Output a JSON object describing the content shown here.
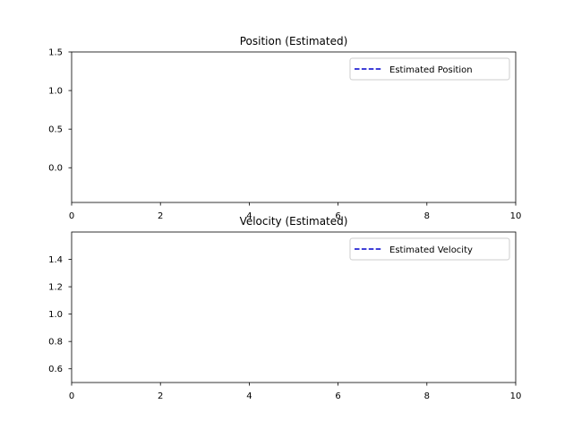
{
  "chart_data": [
    {
      "type": "line",
      "title": "Position (Estimated)",
      "xlabel": "",
      "ylabel": "",
      "xlim": [
        0,
        10
      ],
      "ylim": [
        -0.45,
        1.5
      ],
      "xticks": [
        0,
        2,
        4,
        6,
        8,
        10
      ],
      "xtick_labels": [
        "0",
        "2",
        "4",
        "6",
        "8",
        "10"
      ],
      "yticks": [
        0.0,
        0.5,
        1.0,
        1.5
      ],
      "ytick_labels": [
        "0.0",
        "0.5",
        "1.0",
        "1.5"
      ],
      "grid": false,
      "legend_position": "top-right",
      "series": [
        {
          "name": "Estimated Position",
          "color": "#0000cc",
          "linestyle": "dashed",
          "x": [],
          "y": []
        }
      ]
    },
    {
      "type": "line",
      "title": "Velocity (Estimated)",
      "xlabel": "",
      "ylabel": "",
      "xlim": [
        0,
        10
      ],
      "ylim": [
        0.5,
        1.6
      ],
      "xticks": [
        0,
        2,
        4,
        6,
        8,
        10
      ],
      "xtick_labels": [
        "0",
        "2",
        "4",
        "6",
        "8",
        "10"
      ],
      "yticks": [
        0.6,
        0.8,
        1.0,
        1.2,
        1.4
      ],
      "ytick_labels": [
        "0.6",
        "0.8",
        "1.0",
        "1.2",
        "1.4"
      ],
      "grid": false,
      "legend_position": "top-right",
      "series": [
        {
          "name": "Estimated Velocity",
          "color": "#0000cc",
          "linestyle": "dashed",
          "x": [],
          "y": []
        }
      ]
    }
  ]
}
